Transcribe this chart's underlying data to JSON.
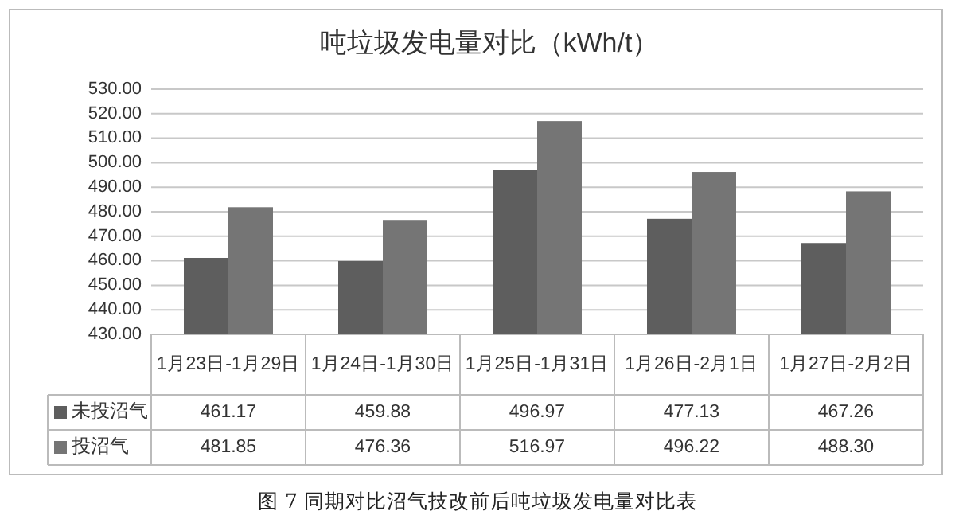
{
  "chart_data": {
    "type": "bar",
    "title": "吨垃圾发电量对比（kWh/t）",
    "categories": [
      "1月23日-1月29日",
      "1月24日-1月30日",
      "1月25日-1月31日",
      "1月26日-2月1日",
      "1月27日-2月2日"
    ],
    "series": [
      {
        "name": "未投沼气",
        "color": "#5e5e5e",
        "values": [
          461.17,
          459.88,
          496.97,
          477.13,
          467.26
        ],
        "value_labels": [
          "461.17",
          "459.88",
          "496.97",
          "477.13",
          "467.26"
        ]
      },
      {
        "name": "投沼气",
        "color": "#757575",
        "values": [
          481.85,
          476.36,
          516.97,
          496.22,
          488.3
        ],
        "value_labels": [
          "481.85",
          "476.36",
          "516.97",
          "496.22",
          "488.30"
        ]
      }
    ],
    "ylim": [
      430,
      530
    ],
    "yticks": [
      {
        "value": 430,
        "label": "430.00"
      },
      {
        "value": 440,
        "label": "440.00"
      },
      {
        "value": 450,
        "label": "450.00"
      },
      {
        "value": 460,
        "label": "460.00"
      },
      {
        "value": 470,
        "label": "470.00"
      },
      {
        "value": 480,
        "label": "480.00"
      },
      {
        "value": 490,
        "label": "490.00"
      },
      {
        "value": 500,
        "label": "500.00"
      },
      {
        "value": 510,
        "label": "510.00"
      },
      {
        "value": 520,
        "label": "520.00"
      },
      {
        "value": 530,
        "label": "530.00"
      }
    ],
    "grid": "y",
    "legend": "bottom left",
    "annotations": [
      "图 7  同期对比沼气技改前后吨垃圾发电量对比表"
    ]
  }
}
